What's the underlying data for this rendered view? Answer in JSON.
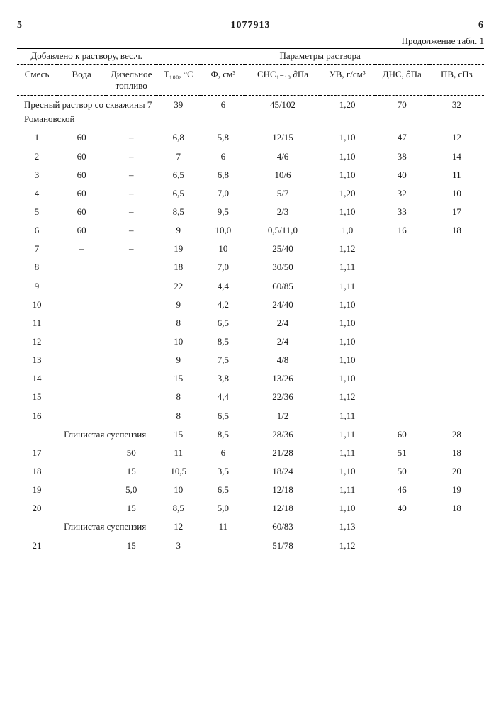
{
  "top": {
    "page_left": "5",
    "doc_number": "1077913",
    "page_right": "6",
    "continuation": "Продолжение табл. 1"
  },
  "headers": {
    "added_to_solution": "Добавлено к раствору, вес.ч.",
    "solution_params": "Параметры раствора",
    "mix": "Смесь",
    "water": "Вода",
    "fuel": "Дизельное топливо",
    "t": "Т₁₀₀, °C",
    "f": "Ф, см³",
    "chc": "СНС₁₋₁₀ ∂Па",
    "uv": "УВ, г/см³",
    "dnc": "ДНС, ∂Па",
    "pv": "ПВ, сПз"
  },
  "rows": [
    {
      "mix": "Пресный раствор со скважины 7 Романовской",
      "water": "",
      "fuel": "",
      "t": "39",
      "f": "6",
      "chc": "45/102",
      "uv": "1,20",
      "dnc": "70",
      "pv": "32",
      "span": true
    },
    {
      "mix": "1",
      "water": "60",
      "fuel": "–",
      "t": "6,8",
      "f": "5,8",
      "chc": "12/15",
      "uv": "1,10",
      "dnc": "47",
      "pv": "12"
    },
    {
      "mix": "2",
      "water": "60",
      "fuel": "–",
      "t": "7",
      "f": "6",
      "chc": "4/6",
      "uv": "1,10",
      "dnc": "38",
      "pv": "14"
    },
    {
      "mix": "3",
      "water": "60",
      "fuel": "–",
      "t": "6,5",
      "f": "6,8",
      "chc": "10/6",
      "uv": "1,10",
      "dnc": "40",
      "pv": "11"
    },
    {
      "mix": "4",
      "water": "60",
      "fuel": "–",
      "t": "6,5",
      "f": "7,0",
      "chc": "5/7",
      "uv": "1,20",
      "dnc": "32",
      "pv": "10"
    },
    {
      "mix": "5",
      "water": "60",
      "fuel": "–",
      "t": "8,5",
      "f": "9,5",
      "chc": "2/3",
      "uv": "1,10",
      "dnc": "33",
      "pv": "17"
    },
    {
      "mix": "6",
      "water": "60",
      "fuel": "–",
      "t": "9",
      "f": "10,0",
      "chc": "0,5/11,0",
      "uv": "1,0",
      "dnc": "16",
      "pv": "18"
    },
    {
      "mix": "7",
      "water": "–",
      "fuel": "–",
      "t": "19",
      "f": "10",
      "chc": "25/40",
      "uv": "1,12",
      "dnc": "",
      "pv": ""
    },
    {
      "mix": "8",
      "water": "",
      "fuel": "",
      "t": "18",
      "f": "7,0",
      "chc": "30/50",
      "uv": "1,11",
      "dnc": "",
      "pv": ""
    },
    {
      "mix": "9",
      "water": "",
      "fuel": "",
      "t": "22",
      "f": "4,4",
      "chc": "60/85",
      "uv": "1,11",
      "dnc": "",
      "pv": ""
    },
    {
      "mix": "10",
      "water": "",
      "fuel": "",
      "t": "9",
      "f": "4,2",
      "chc": "24/40",
      "uv": "1,10",
      "dnc": "",
      "pv": ""
    },
    {
      "mix": "11",
      "water": "",
      "fuel": "",
      "t": "8",
      "f": "6,5",
      "chc": "2/4",
      "uv": "1,10",
      "dnc": "",
      "pv": ""
    },
    {
      "mix": "12",
      "water": "",
      "fuel": "",
      "t": "10",
      "f": "8,5",
      "chc": "2/4",
      "uv": "1,10",
      "dnc": "",
      "pv": ""
    },
    {
      "mix": "13",
      "water": "",
      "fuel": "",
      "t": "9",
      "f": "7,5",
      "chc": "4/8",
      "uv": "1,10",
      "dnc": "",
      "pv": ""
    },
    {
      "mix": "14",
      "water": "",
      "fuel": "",
      "t": "15",
      "f": "3,8",
      "chc": "13/26",
      "uv": "1,10",
      "dnc": "",
      "pv": ""
    },
    {
      "mix": "15",
      "water": "",
      "fuel": "",
      "t": "8",
      "f": "4,4",
      "chc": "22/36",
      "uv": "1,12",
      "dnc": "",
      "pv": ""
    },
    {
      "mix": "16",
      "water": "",
      "fuel": "",
      "t": "8",
      "f": "6,5",
      "chc": "1/2",
      "uv": "1,11",
      "dnc": "",
      "pv": ""
    },
    {
      "mix": "",
      "water": "Глинистая суспензия",
      "fuel": "",
      "t": "15",
      "f": "8,5",
      "chc": "28/36",
      "uv": "1,11",
      "dnc": "60",
      "pv": "28",
      "span2": true
    },
    {
      "mix": "17",
      "water": "",
      "fuel": "50",
      "t": "11",
      "f": "6",
      "chc": "21/28",
      "uv": "1,11",
      "dnc": "51",
      "pv": "18"
    },
    {
      "mix": "18",
      "water": "",
      "fuel": "15",
      "t": "10,5",
      "f": "3,5",
      "chc": "18/24",
      "uv": "1,10",
      "dnc": "50",
      "pv": "20"
    },
    {
      "mix": "19",
      "water": "",
      "fuel": "5,0",
      "t": "10",
      "f": "6,5",
      "chc": "12/18",
      "uv": "1,11",
      "dnc": "46",
      "pv": "19"
    },
    {
      "mix": "20",
      "water": "",
      "fuel": "15",
      "t": "8,5",
      "f": "5,0",
      "chc": "12/18",
      "uv": "1,10",
      "dnc": "40",
      "pv": "18"
    },
    {
      "mix": "",
      "water": "Глинистая суспензия",
      "fuel": "",
      "t": "12",
      "f": "11",
      "chc": "60/83",
      "uv": "1,13",
      "dnc": "",
      "pv": "",
      "span2": true
    },
    {
      "mix": "21",
      "water": "",
      "fuel": "15",
      "t": "3",
      "f": "",
      "chc": "51/78",
      "uv": "1,12",
      "dnc": "",
      "pv": ""
    }
  ]
}
